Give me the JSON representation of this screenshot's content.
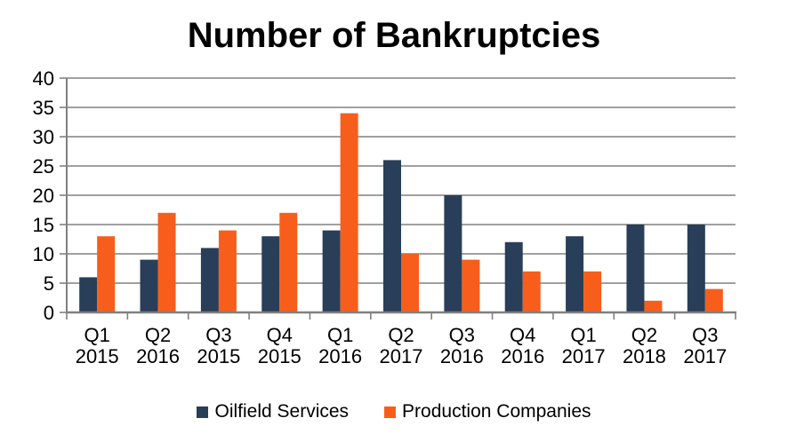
{
  "chart_data": {
    "type": "bar",
    "title": "Number of Bankruptcies",
    "categories": [
      "Q1 2015",
      "Q2 2016",
      "Q3 2015",
      "Q4 2015",
      "Q1 2016",
      "Q2 2017",
      "Q3 2016",
      "Q4 2016",
      "Q1 2017",
      "Q2 2018",
      "Q3 2017"
    ],
    "series": [
      {
        "name": "Oilfield Services",
        "color": "#293E58",
        "values": [
          6,
          9,
          11,
          13,
          14,
          26,
          20,
          12,
          13,
          15,
          15
        ]
      },
      {
        "name": "Production Companies",
        "color": "#F75E1B",
        "values": [
          13,
          17,
          14,
          17,
          34,
          10,
          9,
          7,
          7,
          2,
          4
        ]
      }
    ],
    "xlabel": "",
    "ylabel": "",
    "ylim": [
      0,
      40
    ],
    "y_ticks": [
      0,
      5,
      10,
      15,
      20,
      25,
      30,
      35,
      40
    ],
    "grid": true,
    "legend_position": "bottom",
    "axis_color": "#808080",
    "text_color": "#000000",
    "background_color": "#FFFFFF"
  }
}
